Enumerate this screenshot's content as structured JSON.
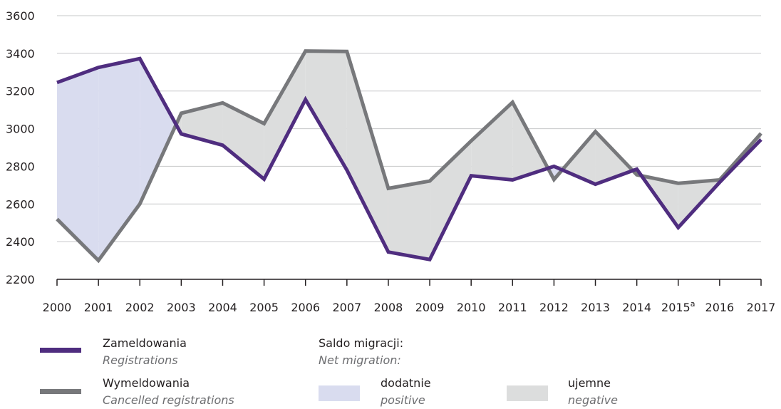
{
  "chart_data": {
    "type": "line",
    "categories": [
      "2000",
      "2001",
      "2002",
      "2003",
      "2004",
      "2005",
      "2006",
      "2007",
      "2008",
      "2009",
      "2010",
      "2011",
      "2012",
      "2013",
      "2014",
      "2015",
      "2016",
      "2017"
    ],
    "category_superscripts": {
      "2015": "a"
    },
    "series": [
      {
        "name": "Zameldowania",
        "name_en": "Registrations",
        "color": "#4f2d7f",
        "values": [
          3245,
          3325,
          3372,
          2972,
          2912,
          2732,
          3155,
          2780,
          2345,
          2305,
          2750,
          2728,
          2800,
          2705,
          2785,
          2475,
          2715,
          2942
        ]
      },
      {
        "name": "Wymeldowania",
        "name_en": "Cancelled registrations",
        "color": "#77787b",
        "values": [
          2520,
          2300,
          2600,
          3082,
          3137,
          3027,
          3412,
          3410,
          2683,
          2722,
          2935,
          3140,
          2730,
          2985,
          2755,
          2710,
          2728,
          2975
        ]
      }
    ],
    "ylim": [
      2200,
      3600
    ],
    "yticks": [
      2200,
      2400,
      2600,
      2800,
      3000,
      3200,
      3400,
      3600
    ],
    "grid": true,
    "fill_colors": {
      "positive": "#d9dcef",
      "negative": "#dcdddd"
    }
  },
  "legend": {
    "registrations": {
      "label": "Zameldowania",
      "label_en": "Registrations"
    },
    "cancelled": {
      "label": "Wymeldowania",
      "label_en": "Cancelled registrations"
    },
    "net_title": "Saldo migracji:",
    "net_title_en": "Net migration:",
    "positive": {
      "label": "dodatnie",
      "label_en": "positive"
    },
    "negative": {
      "label": "ujemne",
      "label_en": "negative"
    }
  }
}
